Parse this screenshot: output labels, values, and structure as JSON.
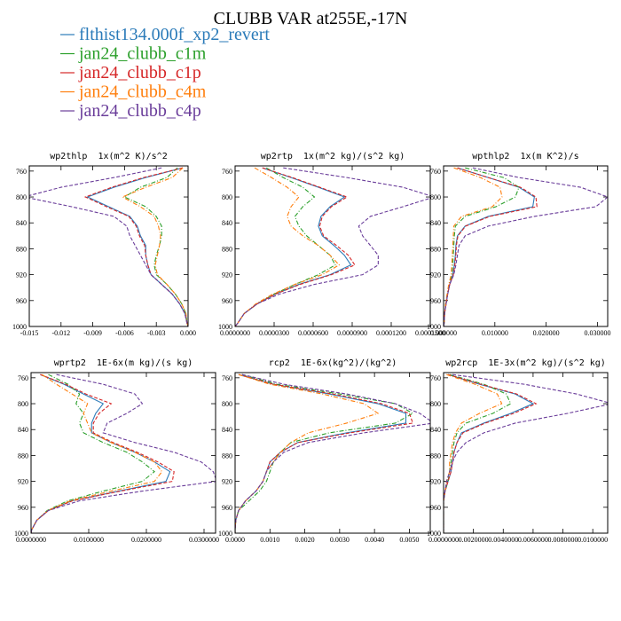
{
  "title": "CLUBB VAR at255E,-17N",
  "legend": [
    {
      "name": "flthist134.000f_xp2_revert",
      "color": "#2b7bb9",
      "line_style": "solid"
    },
    {
      "name": "jan24_clubb_c1m",
      "color": "#2ca02c",
      "line_style": "dashdot"
    },
    {
      "name": "jan24_clubb_c1p",
      "color": "#d62728",
      "line_style": "dashed"
    },
    {
      "name": "jan24_clubb_c4m",
      "color": "#ff7f0e",
      "line_style": "dashdot"
    },
    {
      "name": "jan24_clubb_c4p",
      "color": "#6a3d9a",
      "line_style": "dashed"
    }
  ],
  "chart_data": [
    {
      "type": "line",
      "title": "wp2thlp  1x(m^2 K)/s^2",
      "y_inverted": true,
      "xlim": [
        -0.015,
        0.0
      ],
      "xticks": [
        -0.015,
        -0.012,
        -0.009,
        -0.006,
        -0.003,
        {
          "value": 0,
          "label": "0.000"
        }
      ],
      "ylim": [
        752,
        1000
      ],
      "yticks": [
        760,
        800,
        840,
        880,
        920,
        960,
        1000
      ],
      "y": [
        755,
        770,
        785,
        800,
        815,
        830,
        845,
        860,
        875,
        890,
        905,
        920,
        935,
        950,
        965,
        980,
        995,
        1000
      ],
      "series": [
        {
          "values": [
            -0.0005,
            -0.004,
            -0.007,
            -0.0095,
            -0.0075,
            -0.0055,
            -0.0048,
            -0.0045,
            -0.004,
            -0.004,
            -0.0038,
            -0.0035,
            -0.0025,
            -0.0015,
            -0.0008,
            -0.0003,
            -0.0001,
            0
          ]
        },
        {
          "values": [
            -0.001,
            -0.002,
            -0.0045,
            -0.006,
            -0.004,
            -0.003,
            -0.0025,
            -0.0025,
            -0.0027,
            -0.003,
            -0.0032,
            -0.003,
            -0.002,
            -0.0012,
            -0.0006,
            -0.0002,
            -0.0001,
            0
          ]
        },
        {
          "values": [
            -0.0005,
            -0.0042,
            -0.0072,
            -0.0097,
            -0.0077,
            -0.0056,
            -0.0049,
            -0.0046,
            -0.0041,
            -0.004,
            -0.0038,
            -0.0035,
            -0.0025,
            -0.0015,
            -0.0008,
            -0.0003,
            -0.0001,
            0
          ]
        },
        {
          "values": [
            -0.0005,
            -0.0015,
            -0.004,
            -0.0062,
            -0.0045,
            -0.0032,
            -0.0028,
            -0.0026,
            -0.0027,
            -0.0029,
            -0.0031,
            -0.0029,
            -0.002,
            -0.0012,
            -0.0006,
            -0.0002,
            -0.0001,
            0
          ]
        },
        {
          "values": [
            -0.0025,
            -0.007,
            -0.012,
            -0.0155,
            -0.011,
            -0.007,
            -0.0058,
            -0.0055,
            -0.005,
            -0.0045,
            -0.004,
            -0.0035,
            -0.0025,
            -0.0015,
            -0.0008,
            -0.0003,
            -0.0001,
            0
          ]
        }
      ]
    },
    {
      "type": "line",
      "title": "wp2rtp  1x(m^2 kg)/(s^2 kg)",
      "y_inverted": true,
      "xlim": [
        0,
        0.00015
      ],
      "xticks": [
        {
          "value": 0,
          "label": "0.0000000"
        },
        {
          "value": 3e-05,
          "label": "0.0000300"
        },
        {
          "value": 6e-05,
          "label": "0.0000600"
        },
        {
          "value": 9e-05,
          "label": "0.0000900"
        },
        {
          "value": 0.00012,
          "label": "0.0001200"
        },
        {
          "value": 0.00015,
          "label": "0.0001500"
        }
      ],
      "ylim": [
        752,
        1000
      ],
      "yticks": [
        760,
        800,
        840,
        880,
        920,
        960,
        1000
      ],
      "y": [
        755,
        770,
        785,
        800,
        815,
        830,
        845,
        860,
        875,
        890,
        905,
        920,
        935,
        950,
        965,
        980,
        995,
        1000
      ],
      "series": [
        {
          "values": [
            2.1e-05,
            4.3e-05,
            6.4e-05,
            8.4e-05,
            7.3e-05,
            6.6e-05,
            6.4e-05,
            6.7e-05,
            7.6e-05,
            8.4e-05,
            8.9e-05,
            7.3e-05,
            4.9e-05,
            3.1e-05,
            1.7e-05,
            7e-06,
            2e-06,
            0
          ]
        },
        {
          "values": [
            2.4e-05,
            3.7e-05,
            5.2e-05,
            6.1e-05,
            5.2e-05,
            4.6e-05,
            4.9e-05,
            5.5e-05,
            6.4e-05,
            7.3e-05,
            7.7e-05,
            6.4e-05,
            4.6e-05,
            3e-05,
            1.7e-05,
            7e-06,
            2e-06,
            0
          ]
        },
        {
          "values": [
            2.1e-05,
            4.4e-05,
            6.5e-05,
            8.6e-05,
            7.4e-05,
            6.7e-05,
            6.5e-05,
            6.8e-05,
            7.8e-05,
            8.7e-05,
            9.2e-05,
            7.4e-05,
            5e-05,
            3.1e-05,
            1.7e-05,
            7e-06,
            2e-06,
            0
          ]
        },
        {
          "values": [
            1.5e-05,
            2.8e-05,
            4e-05,
            4.9e-05,
            4.3e-05,
            4e-05,
            4.3e-05,
            5.2e-05,
            6.4e-05,
            7.3e-05,
            8e-05,
            6.7e-05,
            4.6e-05,
            2.9e-05,
            1.6e-05,
            7e-06,
            2e-06,
            0
          ]
        },
        {
          "values": [
            3.7e-05,
            8.6e-05,
            0.000129,
            0.000153,
            0.000129,
            0.000104,
            9.5e-05,
            9.8e-05,
            0.000104,
            0.00011,
            0.00011,
            9.8e-05,
            6.1e-05,
            3.4e-05,
            1.7e-05,
            7e-06,
            2e-06,
            0
          ]
        }
      ]
    },
    {
      "type": "line",
      "title": "wpthlp2  1x(m K^2)/s",
      "y_inverted": true,
      "xlim": [
        0,
        0.032
      ],
      "xticks": [
        {
          "value": 0,
          "label": "0.000000"
        },
        {
          "value": 0.01,
          "label": "0.010000"
        },
        {
          "value": 0.02,
          "label": "0.020000"
        },
        {
          "value": 0.03,
          "label": "0.030000"
        }
      ],
      "ylim": [
        752,
        1000
      ],
      "yticks": [
        760,
        800,
        840,
        880,
        920,
        960,
        1000
      ],
      "y": [
        755,
        770,
        785,
        800,
        815,
        830,
        845,
        860,
        875,
        890,
        905,
        920,
        935,
        950,
        965,
        980,
        995,
        1000
      ],
      "series": [
        {
          "values": [
            0.0027,
            0.0087,
            0.0147,
            0.0177,
            0.0174,
            0.0087,
            0.0042,
            0.0027,
            0.0024,
            0.0023,
            0.0021,
            0.0018,
            0.0012,
            0.0008,
            0.0005,
            0.0002,
            0.0001,
            0
          ]
        },
        {
          "values": [
            0.0042,
            0.0117,
            0.0147,
            0.014,
            0.0102,
            0.0042,
            0.0023,
            0.0021,
            0.002,
            0.0019,
            0.0018,
            0.0016,
            0.0011,
            0.0007,
            0.0004,
            0.0002,
            0.0001,
            0
          ]
        },
        {
          "values": [
            0.0027,
            0.0087,
            0.015,
            0.018,
            0.0182,
            0.009,
            0.0043,
            0.0028,
            0.0025,
            0.0024,
            0.0022,
            0.0019,
            0.0012,
            0.0008,
            0.0005,
            0.0002,
            0.0001,
            0
          ]
        },
        {
          "values": [
            0.002,
            0.0072,
            0.011,
            0.0114,
            0.0095,
            0.0035,
            0.002,
            0.0019,
            0.0018,
            0.0017,
            0.0016,
            0.0015,
            0.001,
            0.0007,
            0.0004,
            0.0002,
            0.0001,
            0
          ]
        },
        {
          "values": [
            0.0057,
            0.0147,
            0.0267,
            0.032,
            0.0297,
            0.0177,
            0.0087,
            0.0042,
            0.003,
            0.0027,
            0.0024,
            0.002,
            0.0012,
            0.0008,
            0.0005,
            0.0002,
            0.0001,
            0
          ]
        }
      ]
    },
    {
      "type": "line",
      "title": "wprtp2  1E-6x(m kg)/(s kg)",
      "y_inverted": true,
      "xlim": [
        0,
        0.032
      ],
      "xticks": [
        {
          "value": 0,
          "label": "0.0000000"
        },
        {
          "value": 0.01,
          "label": "0.0100000"
        },
        {
          "value": 0.02,
          "label": "0.0200000"
        },
        {
          "value": 0.03,
          "label": "0.0300000"
        }
      ],
      "ylim": [
        752,
        1000
      ],
      "yticks": [
        760,
        800,
        840,
        880,
        920,
        960,
        1000
      ],
      "y": [
        755,
        770,
        785,
        800,
        815,
        830,
        845,
        860,
        875,
        890,
        905,
        920,
        935,
        950,
        965,
        980,
        995,
        1000
      ],
      "series": [
        {
          "values": [
            0.0016,
            0.0057,
            0.0091,
            0.0125,
            0.0112,
            0.0105,
            0.0105,
            0.0139,
            0.018,
            0.0214,
            0.0241,
            0.0234,
            0.0152,
            0.0071,
            0.003,
            0.001,
            0.0001,
            0
          ]
        },
        {
          "values": [
            0.003,
            0.0064,
            0.0084,
            0.0078,
            0.0091,
            0.0084,
            0.0091,
            0.0125,
            0.0166,
            0.0193,
            0.0214,
            0.0193,
            0.0125,
            0.0064,
            0.0028,
            0.001,
            0.0001,
            0
          ]
        },
        {
          "values": [
            0.0016,
            0.006,
            0.0095,
            0.0139,
            0.0118,
            0.0108,
            0.0108,
            0.0142,
            0.0184,
            0.022,
            0.0248,
            0.0245,
            0.0155,
            0.0072,
            0.003,
            0.001,
            0.0001,
            0
          ]
        },
        {
          "values": [
            0.0019,
            0.0044,
            0.0071,
            0.0098,
            0.0091,
            0.0098,
            0.0105,
            0.0139,
            0.018,
            0.0214,
            0.0227,
            0.0214,
            0.0139,
            0.0068,
            0.0029,
            0.001,
            0.0001,
            0
          ]
        },
        {
          "values": [
            0.0044,
            0.0125,
            0.018,
            0.0193,
            0.0166,
            0.0132,
            0.0125,
            0.018,
            0.0248,
            0.0295,
            0.0316,
            0.0322,
            0.0193,
            0.0084,
            0.003,
            0.001,
            0.0001,
            0
          ]
        }
      ]
    },
    {
      "type": "line",
      "title": "rcp2  1E-6x(kg^2)/(kg^2)",
      "y_inverted": true,
      "xlim": [
        0,
        0.0056
      ],
      "xticks": [
        {
          "value": 0,
          "label": "0.0000"
        },
        {
          "value": 0.001,
          "label": "0.0010"
        },
        {
          "value": 0.002,
          "label": "0.0020"
        },
        {
          "value": 0.003,
          "label": "0.0030"
        },
        {
          "value": 0.004,
          "label": "0.0040"
        },
        {
          "value": 0.005,
          "label": "0.0050"
        }
      ],
      "ylim": [
        752,
        1000
      ],
      "yticks": [
        760,
        800,
        840,
        880,
        920,
        960,
        1000
      ],
      "y": [
        755,
        770,
        785,
        800,
        815,
        830,
        845,
        860,
        875,
        890,
        905,
        920,
        935,
        950,
        965,
        980,
        995,
        1000
      ],
      "series": [
        {
          "values": [
            0.0001,
            0.0011,
            0.0027,
            0.0041,
            0.0049,
            0.0049,
            0.0032,
            0.0018,
            0.0013,
            0.001,
            0.0009,
            0.0008,
            0.0006,
            0.0003,
            0.0001,
            2e-05,
            0,
            0
          ]
        },
        {
          "values": [
            0.0002,
            0.0012,
            0.003,
            0.0046,
            0.0051,
            0.0046,
            0.0027,
            0.0016,
            0.0013,
            0.0011,
            0.001,
            0.0009,
            0.0007,
            0.0004,
            0.0001,
            2e-05,
            0,
            0
          ]
        },
        {
          "values": [
            0.0001,
            0.0011,
            0.0028,
            0.0042,
            0.005,
            0.0051,
            0.0033,
            0.0018,
            0.0013,
            0.001,
            0.0009,
            0.0008,
            0.0006,
            0.0003,
            0.0001,
            2e-05,
            0,
            0
          ]
        },
        {
          "values": [
            0.0001,
            0.001,
            0.0025,
            0.0037,
            0.0041,
            0.0032,
            0.0021,
            0.0016,
            0.0013,
            0.0011,
            0.0009,
            0.0008,
            0.0006,
            0.0003,
            0.0001,
            2e-05,
            0,
            0
          ]
        },
        {
          "values": [
            0.0002,
            0.0014,
            0.0032,
            0.0046,
            0.0053,
            0.0057,
            0.0037,
            0.0021,
            0.0014,
            0.0011,
            0.0009,
            0.0008,
            0.0006,
            0.0003,
            0.0001,
            2e-05,
            0,
            0
          ]
        }
      ]
    },
    {
      "type": "line",
      "title": "wp2rcp  1E-3x(m^2 kg)/(s^2 kg)",
      "y_inverted": true,
      "xlim": [
        0,
        0.011
      ],
      "xticks": [
        {
          "value": 0,
          "label": "0.0000000"
        },
        {
          "value": 0.002,
          "label": "0.0020000"
        },
        {
          "value": 0.004,
          "label": "0.0040000"
        },
        {
          "value": 0.006,
          "label": "0.0060000"
        },
        {
          "value": 0.008,
          "label": "0.0080000"
        },
        {
          "value": 0.01,
          "label": "0.0100000"
        }
      ],
      "ylim": [
        752,
        1000
      ],
      "yticks": [
        760,
        800,
        840,
        880,
        920,
        960,
        1000
      ],
      "y": [
        755,
        770,
        785,
        800,
        815,
        830,
        845,
        860,
        875,
        890,
        905,
        920,
        935,
        950,
        965,
        980,
        995,
        1000
      ],
      "series": [
        {
          "values": [
            0.0003,
            0.0024,
            0.0048,
            0.006,
            0.0045,
            0.0027,
            0.0012,
            0.0009,
            0.0007,
            0.0006,
            0.0005,
            0.0003,
            0.0001,
            0,
            0,
            0,
            0,
            0
          ]
        },
        {
          "values": [
            0.0004,
            0.0027,
            0.0042,
            0.0045,
            0.0033,
            0.0015,
            0.0009,
            0.0007,
            0.0006,
            0.0005,
            0.0004,
            0.0003,
            0.0001,
            0,
            0,
            0,
            0,
            0
          ]
        },
        {
          "values": [
            0.0003,
            0.0025,
            0.0049,
            0.0062,
            0.0047,
            0.0028,
            0.0013,
            0.0009,
            0.0007,
            0.0006,
            0.0005,
            0.0003,
            0.0001,
            0,
            0,
            0,
            0,
            0
          ]
        },
        {
          "values": [
            0.0002,
            0.0021,
            0.0036,
            0.0039,
            0.0024,
            0.0012,
            0.0008,
            0.0006,
            0.0005,
            0.0004,
            0.0004,
            0.0002,
            0.0001,
            0,
            0,
            0,
            0,
            0
          ]
        },
        {
          "values": [
            0.0006,
            0.0054,
            0.0089,
            0.0113,
            0.0083,
            0.0048,
            0.0027,
            0.0015,
            0.0009,
            0.0006,
            0.0004,
            0.0002,
            0.0001,
            0,
            0,
            0,
            0,
            0
          ]
        }
      ]
    }
  ]
}
